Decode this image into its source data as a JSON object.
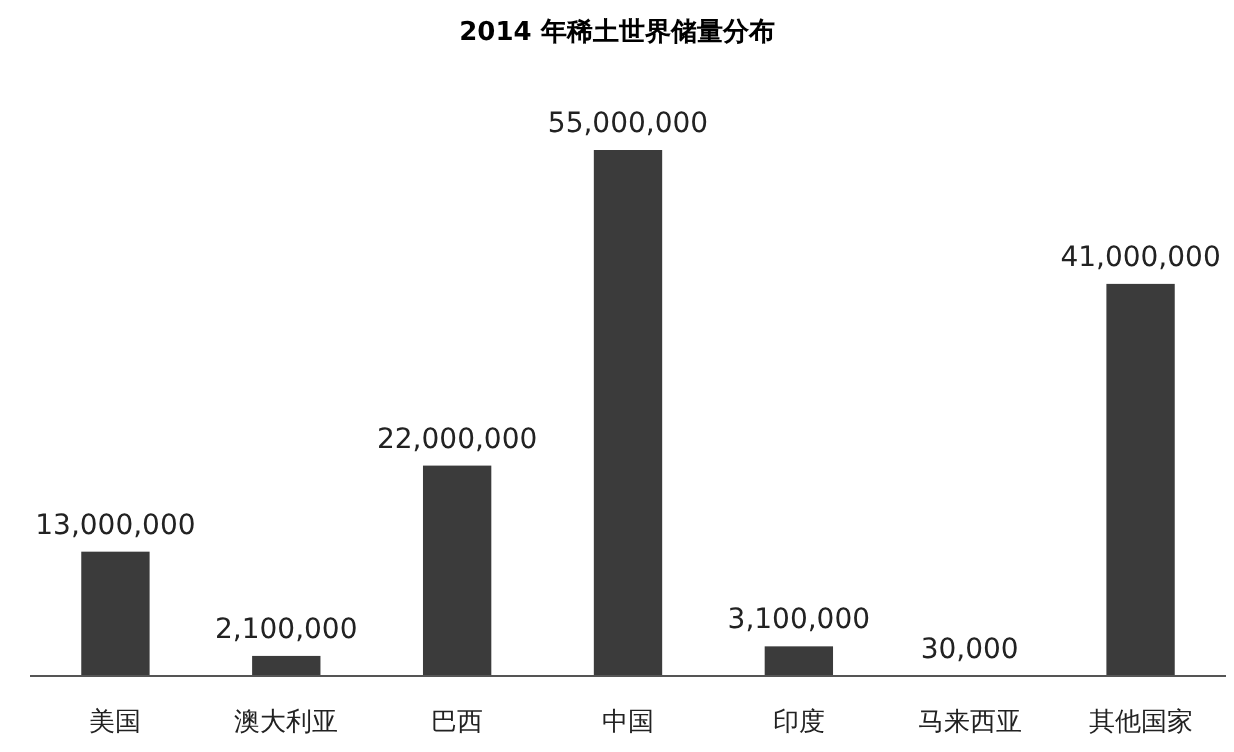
{
  "chart_data": {
    "type": "bar",
    "title": "2014 年稀土世界储量分布",
    "categories": [
      "美国",
      "澳大利亚",
      "巴西",
      "中国",
      "印度",
      "马来西亚",
      "其他国家"
    ],
    "values": [
      13000000,
      2100000,
      22000000,
      55000000,
      3100000,
      30000,
      41000000
    ],
    "value_labels": [
      "13,000,000",
      "2,100,000",
      "22,000,000",
      "55,000,000",
      "3,100,000",
      "30,000",
      "41,000,000"
    ],
    "color": "#3b3b3b"
  }
}
